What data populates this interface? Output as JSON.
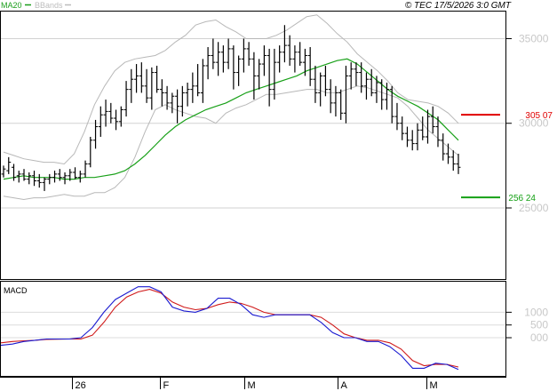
{
  "header": {
    "legend_ma": "MA20",
    "legend_bb": "BBands",
    "copyright": "© TEC 17/5/2026 3:0 GMT"
  },
  "chart_data": {
    "type": "candlestick",
    "price": {
      "y_ticks": [
        {
          "value": 350,
          "label": "35000"
        },
        {
          "value": 300,
          "label": "30000"
        },
        {
          "value": 250,
          "label": "25000"
        }
      ],
      "ylim": [
        208,
        366
      ],
      "resistance": {
        "value": 305.07,
        "label": "305 07",
        "color": "#e00000"
      },
      "support": {
        "value": 256.24,
        "label": "256 24",
        "color": "#14a014"
      },
      "ohlc": [
        [
          270,
          275,
          268,
          273
        ],
        [
          272,
          280,
          270,
          277
        ],
        [
          274,
          276,
          266,
          268
        ],
        [
          269,
          272,
          265,
          270
        ],
        [
          270,
          273,
          266,
          267
        ],
        [
          267,
          271,
          264,
          269
        ],
        [
          269,
          272,
          263,
          266
        ],
        [
          266,
          270,
          262,
          265
        ],
        [
          265,
          268,
          260,
          267
        ],
        [
          267,
          270,
          264,
          268
        ],
        [
          268,
          272,
          265,
          270
        ],
        [
          270,
          273,
          266,
          268
        ],
        [
          268,
          271,
          264,
          269
        ],
        [
          269,
          273,
          266,
          271
        ],
        [
          271,
          274,
          267,
          268
        ],
        [
          268,
          272,
          265,
          270
        ],
        [
          270,
          278,
          268,
          276
        ],
        [
          276,
          292,
          274,
          290
        ],
        [
          290,
          302,
          285,
          298
        ],
        [
          298,
          310,
          292,
          305
        ],
        [
          305,
          314,
          298,
          307
        ],
        [
          307,
          312,
          300,
          303
        ],
        [
          303,
          308,
          296,
          301
        ],
        [
          301,
          310,
          298,
          308
        ],
        [
          308,
          325,
          304,
          320
        ],
        [
          320,
          332,
          312,
          326
        ],
        [
          326,
          335,
          318,
          328
        ],
        [
          328,
          336,
          318,
          322
        ],
        [
          322,
          332,
          312,
          315
        ],
        [
          315,
          333,
          308,
          330
        ],
        [
          330,
          334,
          318,
          320
        ],
        [
          320,
          326,
          310,
          318
        ],
        [
          318,
          322,
          308,
          312
        ],
        [
          312,
          318,
          306,
          316
        ],
        [
          316,
          320,
          300,
          310
        ],
        [
          310,
          322,
          304,
          318
        ],
        [
          318,
          324,
          310,
          320
        ],
        [
          320,
          330,
          312,
          322
        ],
        [
          322,
          335,
          316,
          318
        ],
        [
          318,
          338,
          312,
          334
        ],
        [
          334,
          345,
          326,
          340
        ],
        [
          340,
          350,
          332,
          336
        ],
        [
          336,
          348,
          328,
          342
        ],
        [
          342,
          346,
          330,
          336
        ],
        [
          336,
          350,
          332,
          344
        ],
        [
          344,
          346,
          320,
          330
        ],
        [
          330,
          340,
          322,
          338
        ],
        [
          338,
          350,
          330,
          344
        ],
        [
          344,
          348,
          334,
          338
        ],
        [
          338,
          342,
          314,
          328
        ],
        [
          328,
          338,
          320,
          335
        ],
        [
          335,
          346,
          328,
          340
        ],
        [
          340,
          344,
          310,
          320
        ],
        [
          320,
          344,
          314,
          336
        ],
        [
          336,
          346,
          330,
          342
        ],
        [
          342,
          358,
          336,
          346
        ],
        [
          346,
          352,
          334,
          338
        ],
        [
          338,
          346,
          330,
          342
        ],
        [
          342,
          348,
          334,
          336
        ],
        [
          336,
          344,
          328,
          340
        ],
        [
          340,
          345,
          322,
          326
        ],
        [
          326,
          334,
          312,
          318
        ],
        [
          318,
          330,
          310,
          328
        ],
        [
          328,
          334,
          316,
          320
        ],
        [
          320,
          326,
          306,
          312
        ],
        [
          312,
          322,
          304,
          318
        ],
        [
          318,
          320,
          302,
          306
        ],
        [
          306,
          334,
          300,
          328
        ],
        [
          328,
          336,
          320,
          332
        ],
        [
          332,
          336,
          322,
          330
        ],
        [
          330,
          336,
          318,
          322
        ],
        [
          322,
          330,
          314,
          326
        ],
        [
          326,
          332,
          316,
          318
        ],
        [
          318,
          328,
          312,
          324
        ],
        [
          324,
          326,
          308,
          314
        ],
        [
          314,
          324,
          308,
          320
        ],
        [
          320,
          322,
          300,
          304
        ],
        [
          304,
          312,
          296,
          300
        ],
        [
          300,
          304,
          290,
          294
        ],
        [
          294,
          298,
          286,
          290
        ],
        [
          290,
          296,
          284,
          288
        ],
        [
          288,
          300,
          284,
          296
        ],
        [
          296,
          304,
          290,
          292
        ],
        [
          292,
          308,
          288,
          304
        ],
        [
          304,
          310,
          294,
          298
        ],
        [
          298,
          304,
          286,
          290
        ],
        [
          290,
          294,
          278,
          282
        ],
        [
          282,
          288,
          276,
          280
        ],
        [
          280,
          284,
          272,
          276
        ],
        [
          276,
          282,
          270,
          274
        ]
      ],
      "ma20": [
        267,
        268,
        269,
        268,
        268,
        268,
        267,
        267,
        268,
        268,
        269,
        270,
        272,
        276,
        281,
        287,
        293,
        298,
        302,
        305,
        308,
        310,
        312,
        315,
        318,
        320,
        322,
        324,
        326,
        328,
        331,
        333,
        335,
        337,
        338,
        335,
        330,
        325,
        320,
        316,
        313,
        310,
        306,
        302,
        296,
        290
      ],
      "bb_upper": [
        283,
        281,
        279,
        278,
        277,
        277,
        276,
        282,
        295,
        311,
        322,
        331,
        336,
        338,
        339,
        340,
        343,
        348,
        352,
        358,
        360,
        361,
        357,
        354,
        350,
        350,
        350,
        352,
        355,
        359,
        363,
        364,
        359,
        353,
        348,
        341,
        336,
        331,
        325,
        318,
        314,
        313,
        312,
        310,
        306,
        300
      ],
      "bb_lower": [
        257,
        256,
        255,
        256,
        256,
        257,
        258,
        257,
        257,
        259,
        259,
        262,
        268,
        280,
        295,
        308,
        311,
        308,
        306,
        304,
        303,
        300,
        306,
        309,
        311,
        314,
        317,
        317,
        318,
        319,
        320,
        320,
        318,
        318,
        320,
        322,
        321,
        319,
        317,
        315,
        310,
        303,
        296,
        291,
        286,
        281
      ]
    },
    "macd": {
      "title": "MACD",
      "y_ticks": [
        {
          "value": 1000,
          "label": "1000"
        },
        {
          "value": 500,
          "label": "500"
        },
        {
          "value": 0,
          "label": "000"
        }
      ],
      "ylim": [
        -1500,
        2200
      ],
      "macd_line": [
        -300,
        -250,
        -150,
        -100,
        -50,
        -50,
        -50,
        0,
        400,
        1000,
        1500,
        1750,
        2000,
        2000,
        1800,
        1200,
        1050,
        1000,
        1150,
        1550,
        1550,
        1300,
        900,
        800,
        900,
        900,
        900,
        900,
        600,
        200,
        0,
        0,
        -150,
        -150,
        -350,
        -700,
        -1200,
        -1200,
        -1000,
        -1050,
        -1250
      ],
      "signal_line": [
        -200,
        -150,
        -120,
        -100,
        -70,
        -60,
        -50,
        -50,
        100,
        600,
        1200,
        1600,
        1800,
        1900,
        1750,
        1400,
        1200,
        1100,
        1150,
        1300,
        1400,
        1350,
        1200,
        1000,
        900,
        900,
        900,
        900,
        800,
        500,
        150,
        0,
        -100,
        -100,
        -200,
        -450,
        -900,
        -1100,
        -1050,
        -1050,
        -1150
      ],
      "line_colors": {
        "macd": "#1a1ad0",
        "signal": "#d01a1a"
      }
    },
    "x_ticks": [
      {
        "label": "26",
        "pos": 0.142
      },
      {
        "label": "F",
        "pos": 0.317
      },
      {
        "label": "M",
        "pos": 0.483
      },
      {
        "label": "A",
        "pos": 0.668
      },
      {
        "label": "M",
        "pos": 0.843
      }
    ]
  }
}
